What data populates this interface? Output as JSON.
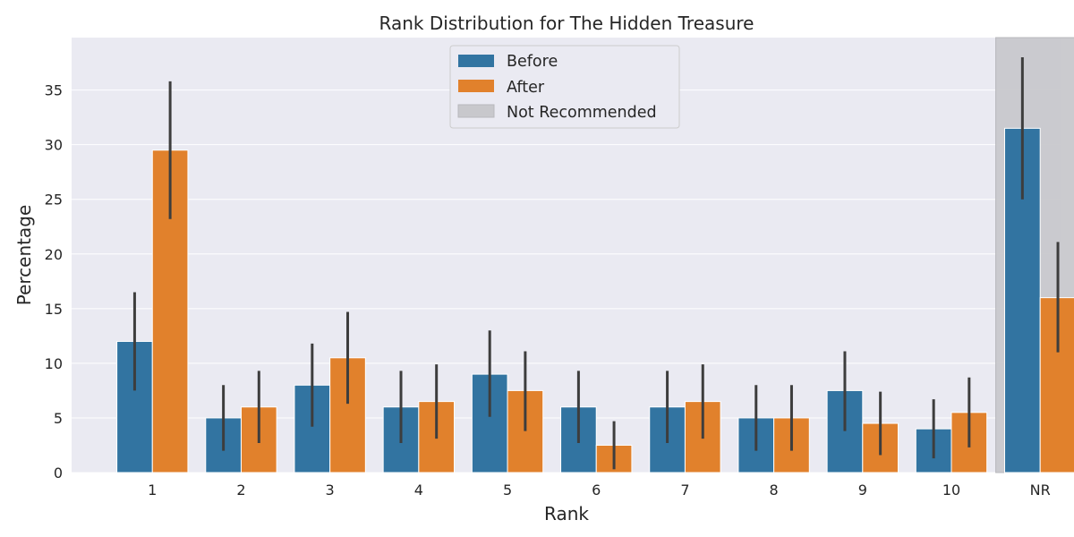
{
  "chart_data": {
    "type": "bar",
    "title": "Rank Distribution for The Hidden Treasure",
    "xlabel": "Rank",
    "ylabel": "Percentage",
    "categories": [
      "1",
      "2",
      "3",
      "4",
      "5",
      "6",
      "7",
      "8",
      "9",
      "10",
      "NR"
    ],
    "series": [
      {
        "name": "Before",
        "color": "#3274a1",
        "values": [
          12.0,
          5.0,
          8.0,
          6.0,
          9.0,
          6.0,
          6.0,
          5.0,
          7.5,
          4.0,
          31.5
        ],
        "err_low": [
          7.5,
          2.0,
          4.2,
          2.7,
          5.1,
          2.7,
          2.7,
          2.0,
          3.8,
          1.3,
          25.0
        ],
        "err_high": [
          16.5,
          8.0,
          11.8,
          9.3,
          13.0,
          9.3,
          9.3,
          8.0,
          11.1,
          6.7,
          38.0
        ]
      },
      {
        "name": "After",
        "color": "#e1812c",
        "values": [
          29.5,
          6.0,
          10.5,
          6.5,
          7.5,
          2.5,
          6.5,
          5.0,
          4.5,
          5.5,
          16.0
        ],
        "err_low": [
          23.2,
          2.7,
          6.3,
          3.1,
          3.8,
          0.3,
          3.1,
          2.0,
          1.6,
          2.3,
          11.0
        ],
        "err_high": [
          35.8,
          9.3,
          14.7,
          9.9,
          11.1,
          4.7,
          9.9,
          8.0,
          7.4,
          8.7,
          21.1
        ]
      }
    ],
    "highlight": {
      "category": "NR",
      "label": "Not Recommended",
      "color": "#c8c8cc"
    },
    "ylim": [
      0,
      39.8
    ],
    "yticks": [
      0,
      5,
      10,
      15,
      20,
      25,
      30,
      35
    ],
    "grid": true,
    "legend_position": "top-center"
  }
}
